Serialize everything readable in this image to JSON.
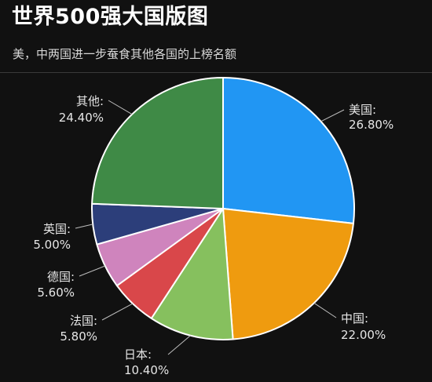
{
  "title": "世界500强大国版图",
  "subtitle": "美，中两国进一步蚕食其他各国的上榜名额",
  "chart_data": {
    "type": "pie",
    "slices": [
      {
        "label": "美国",
        "value": 26.8,
        "display": "26.80%",
        "color": "#2196f3"
      },
      {
        "label": "中国",
        "value": 22.0,
        "display": "22.00%",
        "color": "#ef9b0f"
      },
      {
        "label": "日本",
        "value": 10.4,
        "display": "10.40%",
        "color": "#86c05e"
      },
      {
        "label": "法国",
        "value": 5.8,
        "display": "5.80%",
        "color": "#d9474a"
      },
      {
        "label": "德国",
        "value": 5.6,
        "display": "5.60%",
        "color": "#cf84bd"
      },
      {
        "label": "英国",
        "value": 5.0,
        "display": "5.00%",
        "color": "#2c3e7a"
      },
      {
        "label": "其他",
        "value": 24.4,
        "display": "24.40%",
        "color": "#3f8a46"
      }
    ],
    "start_angle": "12 o'clock",
    "direction": "clockwise",
    "slice_border_color": "#ffffff",
    "label_suffix": ":"
  }
}
